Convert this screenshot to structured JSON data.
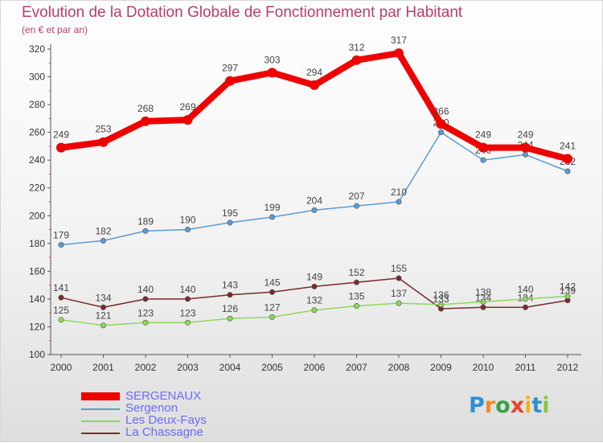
{
  "chart_data": {
    "type": "line",
    "title": "Evolution de la Dotation Globale de Fonctionnement par Habitant",
    "subtitle": "(en € et par an)",
    "xlabel": "",
    "ylabel": "",
    "ylim": [
      100,
      320
    ],
    "yticks": [
      100,
      120,
      140,
      160,
      180,
      200,
      220,
      240,
      260,
      280,
      300,
      320
    ],
    "categories": [
      "2000",
      "2001",
      "2002",
      "2003",
      "2004",
      "2005",
      "2006",
      "2007",
      "2008",
      "2009",
      "2010",
      "2011",
      "2012"
    ],
    "grid": false,
    "legend_position": "bottom-left",
    "series": [
      {
        "name": "SERGENAUX",
        "color": "#ee0000",
        "values": [
          249,
          253,
          268,
          269,
          297,
          303,
          294,
          312,
          317,
          266,
          249,
          249,
          241
        ]
      },
      {
        "name": "Sergenon",
        "color": "#5b9bd5",
        "values": [
          179,
          182,
          189,
          190,
          195,
          199,
          204,
          207,
          210,
          260,
          240,
          244,
          232
        ]
      },
      {
        "name": "Les Deux-Fays",
        "color": "#8fd85a",
        "values": [
          125,
          121,
          123,
          123,
          126,
          127,
          132,
          135,
          137,
          136,
          138,
          140,
          142
        ]
      },
      {
        "name": "La Chassagne",
        "color": "#7a2a2a",
        "values": [
          141,
          134,
          140,
          140,
          143,
          145,
          149,
          152,
          155,
          133,
          134,
          134,
          139
        ]
      }
    ]
  },
  "logo": {
    "letters": [
      "P",
      "r",
      "o",
      "x",
      "i",
      "t",
      "i"
    ],
    "colors": [
      "#2e8fd6",
      "#f08a24",
      "#3aa14a",
      "#e8452c",
      "#f2b21e",
      "#2e8fd6",
      "#8cc63f"
    ]
  },
  "theme": {
    "title_color": "#c03a6a",
    "legend_text_color": "#6a6aff",
    "axis_color": "#555555"
  }
}
